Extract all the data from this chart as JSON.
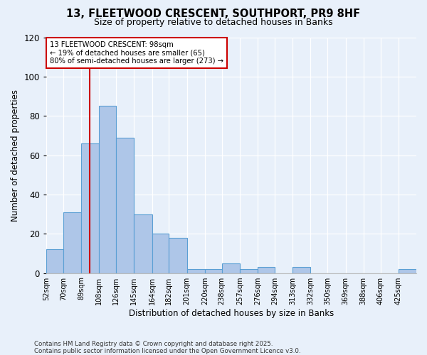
{
  "title_line1": "13, FLEETWOOD CRESCENT, SOUTHPORT, PR9 8HF",
  "title_line2": "Size of property relative to detached houses in Banks",
  "xlabel": "Distribution of detached houses by size in Banks",
  "ylabel": "Number of detached properties",
  "categories": [
    "52sqm",
    "70sqm",
    "89sqm",
    "108sqm",
    "126sqm",
    "145sqm",
    "164sqm",
    "182sqm",
    "201sqm",
    "220sqm",
    "238sqm",
    "257sqm",
    "276sqm",
    "294sqm",
    "313sqm",
    "332sqm",
    "350sqm",
    "369sqm",
    "388sqm",
    "406sqm",
    "425sqm"
  ],
  "values": [
    12,
    31,
    66,
    85,
    69,
    30,
    20,
    18,
    2,
    2,
    5,
    2,
    3,
    0,
    3,
    0,
    0,
    0,
    0,
    0,
    2
  ],
  "bar_color": "#aec6e8",
  "bar_edge_color": "#5a9fd4",
  "bg_color": "#e8f0fa",
  "red_line_x": 98,
  "annotation_text": "13 FLEETWOOD CRESCENT: 98sqm\n← 19% of detached houses are smaller (65)\n80% of semi-detached houses are larger (273) →",
  "annotation_box_color": "#ffffff",
  "annotation_box_edge": "#cc0000",
  "footnote1": "Contains HM Land Registry data © Crown copyright and database right 2025.",
  "footnote2": "Contains public sector information licensed under the Open Government Licence v3.0.",
  "ylim": [
    0,
    120
  ],
  "yticks": [
    0,
    20,
    40,
    60,
    80,
    100,
    120
  ],
  "bin_edges": [
    52,
    70,
    89,
    108,
    126,
    145,
    164,
    182,
    201,
    220,
    238,
    257,
    276,
    294,
    313,
    332,
    350,
    369,
    388,
    406,
    425,
    444
  ]
}
